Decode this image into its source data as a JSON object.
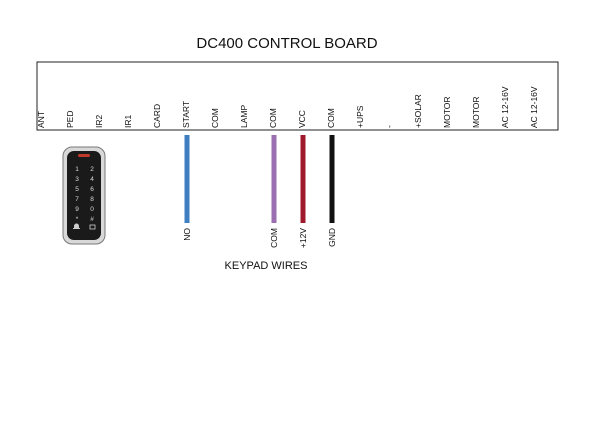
{
  "title": "DC400 CONTROL BOARD",
  "terminals": [
    "ANT",
    "PED",
    "IR2",
    "IR1",
    "CARD",
    "START",
    "COM",
    "LAMP",
    "COM",
    "VCC",
    "COM",
    "+UPS",
    "-",
    "+SOLAR",
    "MOTOR",
    "MOTOR",
    "AC 12-16V",
    "AC 12-16V"
  ],
  "wires": [
    {
      "label": "NO",
      "color": "#3f7fc1",
      "terminal": 5
    },
    {
      "label": "COM",
      "color": "#9b6fb0",
      "terminal": 8
    },
    {
      "label": "+12V",
      "color": "#a0182c",
      "terminal": 9
    },
    {
      "label": "GND",
      "color": "#111111",
      "terminal": 10
    }
  ],
  "wires_caption": "KEYPAD WIRES",
  "keypad": {
    "keys": [
      "1",
      "2",
      "3",
      "4",
      "5",
      "6",
      "7",
      "8",
      "9",
      "0",
      "*",
      "#"
    ]
  }
}
